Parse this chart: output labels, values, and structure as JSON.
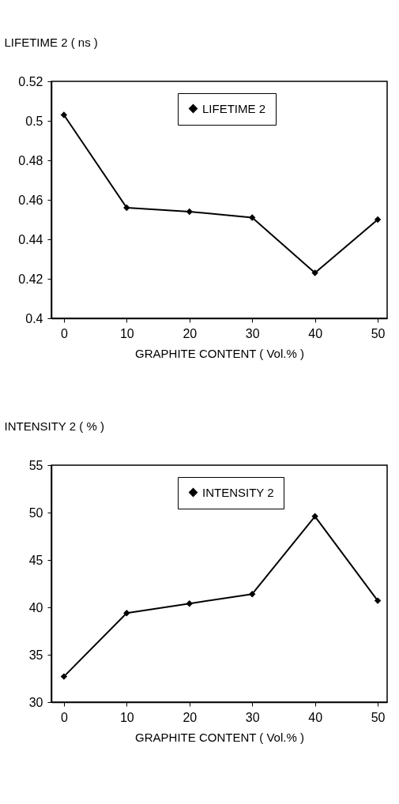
{
  "chart_data": [
    {
      "type": "line",
      "xlabel": "GRAPHITE CONTENT ( Vol.% )",
      "ylabel": "LIFETIME 2 ( ns )",
      "x": [
        0,
        10,
        20,
        30,
        40,
        50
      ],
      "series": [
        {
          "name": "LIFETIME 2",
          "color": "#000000",
          "values": [
            0.503,
            0.456,
            0.454,
            0.451,
            0.423,
            0.45
          ]
        }
      ],
      "xlim": [
        -2,
        51.5
      ],
      "xticks": [
        0,
        10,
        20,
        30,
        40,
        50
      ],
      "ylim": [
        0.4,
        0.52
      ],
      "yticks": [
        0.4,
        {
          "value": 0.42,
          "label": "0.42"
        },
        0.44,
        0.46,
        0.48,
        {
          "value": 0.5,
          "label": "0.5"
        },
        0.52
      ],
      "marker": "diamond",
      "line_style": "solid",
      "legend": "top",
      "grid": false
    },
    {
      "type": "line",
      "xlabel": "GRAPHITE CONTENT ( Vol.% )",
      "ylabel": "INTENSITY 2 ( % )",
      "x": [
        0,
        10,
        20,
        30,
        40,
        50
      ],
      "series": [
        {
          "name": "INTENSITY 2",
          "color": "#000000",
          "values": [
            32.7,
            39.4,
            40.4,
            41.4,
            49.6,
            40.7
          ]
        }
      ],
      "xlim": [
        -2,
        51.5
      ],
      "xticks": [
        0,
        10,
        20,
        30,
        40,
        50
      ],
      "ylim": [
        30,
        55
      ],
      "yticks": [
        30,
        35,
        40,
        45,
        50,
        55
      ],
      "marker": "diamond",
      "line_style": "solid",
      "legend": "top",
      "grid": false
    }
  ]
}
